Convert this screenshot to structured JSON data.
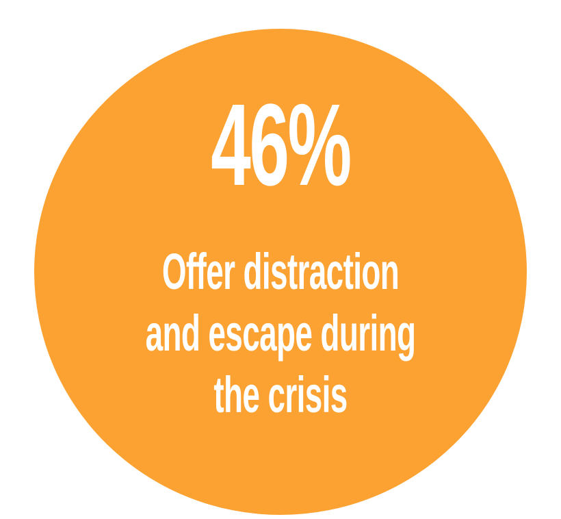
{
  "stat": {
    "value": "46%",
    "caption_lines": [
      "Offer distraction",
      "and escape during",
      "the crisis"
    ]
  },
  "colors": {
    "circle": "#FBA232",
    "text": "#FFFFFF",
    "background": "#FFFFFF"
  }
}
